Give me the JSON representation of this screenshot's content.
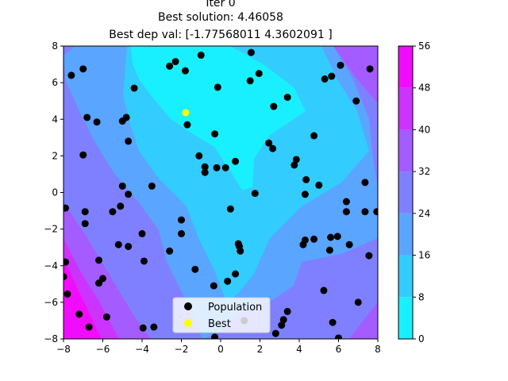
{
  "chart_data": {
    "type": "scatter",
    "title_lines": [
      "Iter 0",
      "Best solution: 4.46058",
      "Best dep val: [-1.77568011  4.3602091 ]"
    ],
    "xlabel": "",
    "ylabel": "",
    "xlim": [
      -8,
      8
    ],
    "ylim": [
      -8,
      8
    ],
    "xticks": [
      -8,
      -6,
      -4,
      -2,
      0,
      2,
      4,
      6,
      8
    ],
    "yticks": [
      -8,
      -6,
      -4,
      -2,
      0,
      2,
      4,
      6,
      8
    ],
    "grid": false,
    "legend": {
      "placement": "lower-center",
      "entries": [
        "Population",
        "Best"
      ]
    },
    "colorbar": {
      "levels": [
        0,
        8,
        16,
        24,
        32,
        40,
        48,
        56
      ],
      "colors": [
        "#19f0ff",
        "#33ccff",
        "#5aa5ff",
        "#7f80ff",
        "#a45bff",
        "#cc33ff",
        "#f20cff"
      ]
    },
    "contour": {
      "description": "filled contour levels of objective",
      "min_at": [
        -1.78,
        4.36
      ]
    },
    "series": [
      {
        "name": "Population",
        "color": "#000000",
        "points": [
          [
            -7.6,
            6.4
          ],
          [
            -7.0,
            6.75
          ],
          [
            -6.8,
            4.1
          ],
          [
            -6.3,
            3.85
          ],
          [
            -5.0,
            3.9
          ],
          [
            -4.8,
            4.1
          ],
          [
            -4.4,
            5.7
          ],
          [
            -4.7,
            2.8
          ],
          [
            -7.0,
            2.05
          ],
          [
            -2.6,
            6.9
          ],
          [
            -2.3,
            7.15
          ],
          [
            -1.8,
            6.65
          ],
          [
            -1.0,
            7.5
          ],
          [
            1.55,
            7.65
          ],
          [
            1.5,
            6.1
          ],
          [
            1.95,
            6.5
          ],
          [
            -0.15,
            5.75
          ],
          [
            2.7,
            4.7
          ],
          [
            3.4,
            5.2
          ],
          [
            -1.7,
            3.7
          ],
          [
            -0.3,
            3.2
          ],
          [
            -1.1,
            2.0
          ],
          [
            -0.8,
            1.4
          ],
          [
            -0.8,
            1.1
          ],
          [
            -0.2,
            1.35
          ],
          [
            0.25,
            1.35
          ],
          [
            0.75,
            1.7
          ],
          [
            2.45,
            2.7
          ],
          [
            2.65,
            2.4
          ],
          [
            3.75,
            1.5
          ],
          [
            3.85,
            1.8
          ],
          [
            4.75,
            3.1
          ],
          [
            4.35,
            0.7
          ],
          [
            5.0,
            0.4
          ],
          [
            4.3,
            -0.1
          ],
          [
            5.3,
            6.2
          ],
          [
            5.65,
            6.35
          ],
          [
            6.1,
            6.95
          ],
          [
            6.9,
            5.0
          ],
          [
            7.6,
            6.75
          ],
          [
            7.35,
            0.55
          ],
          [
            6.4,
            -0.5
          ],
          [
            6.4,
            -1.05
          ],
          [
            7.35,
            -1.05
          ],
          [
            7.95,
            -1.05
          ],
          [
            1.75,
            -0.05
          ],
          [
            0.5,
            -0.9
          ],
          [
            -7.9,
            -0.85
          ],
          [
            -6.9,
            -1.05
          ],
          [
            -6.9,
            -1.7
          ],
          [
            -5.5,
            -1.05
          ],
          [
            -5.1,
            -0.75
          ],
          [
            -5.0,
            0.35
          ],
          [
            -4.7,
            -0.1
          ],
          [
            -3.5,
            0.35
          ],
          [
            -2.0,
            -1.5
          ],
          [
            -4.0,
            -2.25
          ],
          [
            -2.0,
            -2.25
          ],
          [
            -5.2,
            -2.85
          ],
          [
            -4.7,
            -2.95
          ],
          [
            -3.9,
            -3.75
          ],
          [
            -2.6,
            -3.2
          ],
          [
            -1.3,
            -4.2
          ],
          [
            0.9,
            -2.8
          ],
          [
            0.95,
            -2.95
          ],
          [
            1.0,
            -3.2
          ],
          [
            -6.2,
            -3.7
          ],
          [
            -6.0,
            -4.7
          ],
          [
            -6.2,
            -4.95
          ],
          [
            -7.9,
            -3.8
          ],
          [
            -8.0,
            -4.6
          ],
          [
            -7.8,
            -5.55
          ],
          [
            -7.2,
            -6.65
          ],
          [
            -6.7,
            -7.35
          ],
          [
            -5.8,
            -6.8
          ],
          [
            -3.95,
            -7.4
          ],
          [
            -3.4,
            -7.35
          ],
          [
            -0.35,
            -5.1
          ],
          [
            0.35,
            -4.85
          ],
          [
            0.75,
            -4.45
          ],
          [
            -0.3,
            -7.9
          ],
          [
            1.2,
            -7.0
          ],
          [
            2.8,
            -7.7
          ],
          [
            3.1,
            -7.25
          ],
          [
            3.2,
            -6.95
          ],
          [
            3.4,
            -6.5
          ],
          [
            4.2,
            -2.85
          ],
          [
            4.3,
            -2.6
          ],
          [
            4.75,
            -2.55
          ],
          [
            5.6,
            -2.45
          ],
          [
            5.95,
            -2.4
          ],
          [
            5.55,
            -3.15
          ],
          [
            5.25,
            -5.35
          ],
          [
            5.7,
            -7.1
          ],
          [
            6.0,
            -7.95
          ],
          [
            6.55,
            -2.85
          ],
          [
            7.0,
            -6.0
          ],
          [
            7.55,
            -3.45
          ]
        ]
      },
      {
        "name": "Best",
        "color": "#ffff00",
        "points": [
          [
            -1.78,
            4.36
          ]
        ]
      }
    ]
  }
}
